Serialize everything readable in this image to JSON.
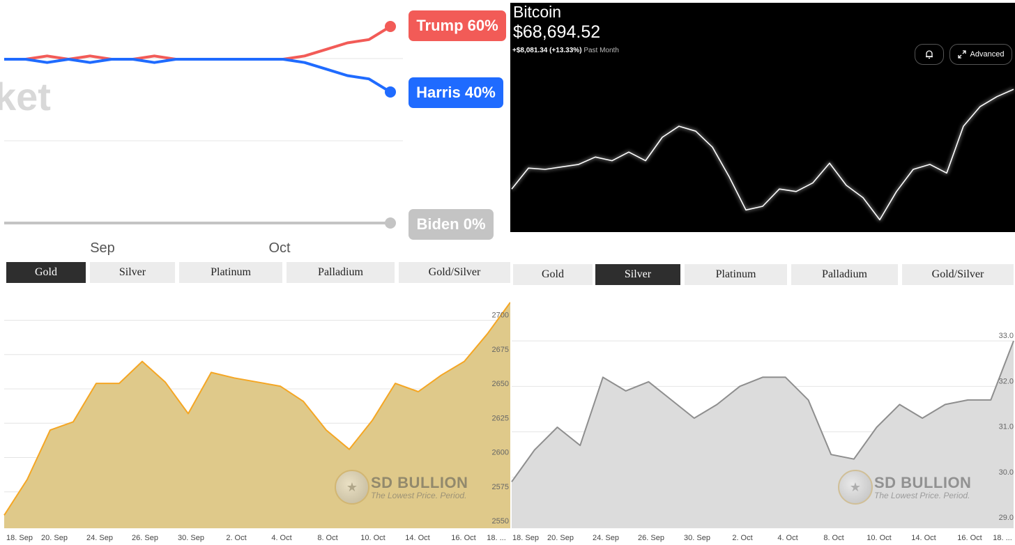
{
  "election": {
    "watermark": "ket",
    "month_labels": [
      "Sep",
      "Oct"
    ],
    "candidates": [
      {
        "name": "Trump",
        "percent": "60%",
        "label": "Trump 60%",
        "color": "#f25b57"
      },
      {
        "name": "Harris",
        "percent": "40%",
        "label": "Harris 40%",
        "color": "#1f6bff"
      },
      {
        "name": "Biden",
        "percent": "0%",
        "label": "Biden 0%",
        "color": "#c4c4c4"
      }
    ]
  },
  "bitcoin": {
    "title": "Bitcoin",
    "price": "$68,694.52",
    "change": "+$8,081.34 (+13.33%)",
    "period": "Past Month",
    "buttons": {
      "alert_icon": "bell-plus-icon",
      "advanced_label": "Advanced",
      "advanced_icon": "expand-icon"
    },
    "line_color": "#ffffff"
  },
  "gold_panel": {
    "tabs": [
      {
        "label": "Gold",
        "active": true
      },
      {
        "label": "Silver",
        "active": false
      },
      {
        "label": "Platinum",
        "active": false
      },
      {
        "label": "Palladium",
        "active": false
      },
      {
        "label": "Gold/Silver",
        "active": false
      }
    ],
    "logo": {
      "brand": "SD BULLION",
      "tagline": "The Lowest Price. Period."
    },
    "colors": {
      "line": "#f5a623",
      "fill": "#dfc98a"
    }
  },
  "silver_panel": {
    "tabs": [
      {
        "label": "Gold",
        "active": false
      },
      {
        "label": "Silver",
        "active": true
      },
      {
        "label": "Platinum",
        "active": false
      },
      {
        "label": "Palladium",
        "active": false
      },
      {
        "label": "Gold/Silver",
        "active": false
      }
    ],
    "logo": {
      "brand": "SD BULLION",
      "tagline": "The Lowest Price. Period."
    },
    "colors": {
      "line": "#8e8e8e",
      "fill": "#dcdcdc"
    }
  },
  "chart_data": [
    {
      "type": "line",
      "x_labels": [
        "Sep",
        "Oct"
      ],
      "series": [
        {
          "name": "Trump",
          "end_value": 60,
          "values": [
            50,
            50,
            51,
            50,
            51,
            50,
            50,
            51,
            50,
            50,
            50,
            50,
            50,
            50,
            51,
            53,
            55,
            56,
            60
          ]
        },
        {
          "name": "Harris",
          "end_value": 40,
          "values": [
            50,
            50,
            49,
            50,
            49,
            50,
            50,
            49,
            50,
            50,
            50,
            50,
            50,
            50,
            49,
            47,
            45,
            44,
            40
          ]
        },
        {
          "name": "Biden",
          "end_value": 0,
          "values": [
            0,
            0,
            0,
            0,
            0,
            0,
            0,
            0,
            0,
            0,
            0,
            0,
            0,
            0,
            0,
            0,
            0,
            0,
            0
          ]
        }
      ]
    },
    {
      "type": "line",
      "title": "Bitcoin",
      "values": [
        60600,
        62300,
        62200,
        62400,
        62600,
        63200,
        62900,
        63600,
        62900,
        64800,
        65700,
        65300,
        64000,
        61600,
        58900,
        59200,
        60600,
        60400,
        61100,
        62700,
        60900,
        59900,
        58100,
        60400,
        62200,
        62600,
        61900,
        65700,
        67300,
        68100,
        68700
      ]
    },
    {
      "type": "area",
      "title": "Gold",
      "categories": [
        "18. Sep",
        "20. Sep",
        "24. Sep",
        "26. Sep",
        "30. Sep",
        "2. Oct",
        "4. Oct",
        "8. Oct",
        "10. Oct",
        "14. Oct",
        "16. Oct",
        "18. ..."
      ],
      "x": [
        "18. Sep",
        "19. Sep",
        "20. Sep",
        "23. Sep",
        "24. Sep",
        "25. Sep",
        "26. Sep",
        "27. Sep",
        "30. Sep",
        "1. Oct",
        "2. Oct",
        "3. Oct",
        "4. Oct",
        "7. Oct",
        "8. Oct",
        "9. Oct",
        "10. Oct",
        "11. Oct",
        "14. Oct",
        "15. Oct",
        "16. Oct",
        "17. Oct",
        "18. Oct"
      ],
      "values": [
        2558,
        2584,
        2620,
        2626,
        2654,
        2654,
        2670,
        2655,
        2632,
        2662,
        2658,
        2655,
        2652,
        2641,
        2620,
        2606,
        2627,
        2654,
        2648,
        2660,
        2670,
        2690,
        2713
      ],
      "yticks": [
        2550,
        2575,
        2600,
        2625,
        2650,
        2675,
        2700
      ],
      "ylim": [
        2549,
        2716
      ],
      "grid": true
    },
    {
      "type": "area",
      "title": "Silver",
      "categories": [
        "18. Sep",
        "20. Sep",
        "24. Sep",
        "26. Sep",
        "30. Sep",
        "2. Oct",
        "4. Oct",
        "8. Oct",
        "10. Oct",
        "14. Oct",
        "16. Oct",
        "18. ..."
      ],
      "x": [
        "18. Sep",
        "19. Sep",
        "20. Sep",
        "23. Sep",
        "24. Sep",
        "25. Sep",
        "26. Sep",
        "27. Sep",
        "30. Sep",
        "1. Oct",
        "2. Oct",
        "3. Oct",
        "4. Oct",
        "7. Oct",
        "8. Oct",
        "9. Oct",
        "10. Oct",
        "11. Oct",
        "14. Oct",
        "15. Oct",
        "16. Oct",
        "17. Oct",
        "18. Oct"
      ],
      "values": [
        29.9,
        30.6,
        31.1,
        30.7,
        32.2,
        31.9,
        32.1,
        31.7,
        31.3,
        31.6,
        32.0,
        32.2,
        32.2,
        31.7,
        30.5,
        30.4,
        31.1,
        31.6,
        31.3,
        31.6,
        31.7,
        31.7,
        33.0
      ],
      "yticks": [
        29.0,
        30.0,
        31.0,
        32.0,
        33.0
      ],
      "ylim": [
        29.0,
        33.6
      ],
      "grid": true
    }
  ]
}
